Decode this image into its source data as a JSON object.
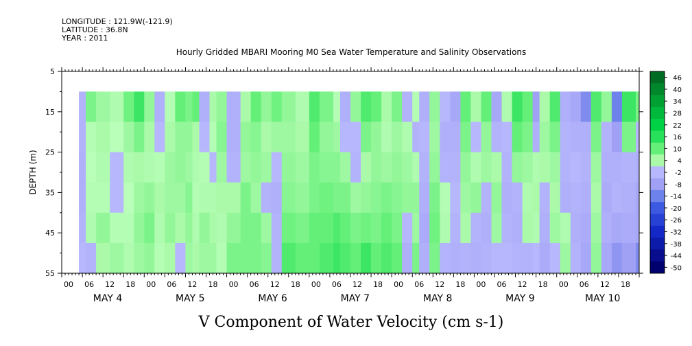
{
  "header": {
    "longitude": "LONGITUDE : 121.9W(-121.9)",
    "latitude": "LATITUDE : 36.8N",
    "year": "YEAR : 2011"
  },
  "chart_data": {
    "type": "heatmap",
    "title": "Hourly Gridded MBARI Mooring M0 Sea Water Temperature and Salinity Observations",
    "xlabel": "V Component of Water Velocity (cm s-1)",
    "ylabel": "DEPTH (m)",
    "y_axis": {
      "range": [
        5,
        55
      ],
      "ticks": [
        "5",
        "15",
        "25",
        "35",
        "45",
        "55"
      ],
      "inverted": true
    },
    "x_hour_ticks": [
      "00",
      "06",
      "12",
      "18",
      "00",
      "06",
      "12",
      "18",
      "00",
      "06",
      "12",
      "18",
      "00",
      "06",
      "12",
      "18",
      "00",
      "06",
      "12",
      "18",
      "00",
      "06",
      "12",
      "18",
      "00",
      "06",
      "12",
      "18"
    ],
    "x_day_labels": [
      "MAY  4",
      "MAY  5",
      "MAY  6",
      "MAY  7",
      "MAY  8",
      "MAY  9",
      "MAY 10"
    ],
    "data_extent": {
      "time_start": "MAY 4 05h",
      "time_end": "MAY 10 23h",
      "depth_top": 10,
      "depth_bottom": 55
    },
    "colorbar": {
      "labels": [
        "46",
        "40",
        "34",
        "28",
        "22",
        "16",
        "10",
        "4",
        "-2",
        "-8",
        "-14",
        "-20",
        "-26",
        "-32",
        "-38",
        "-44",
        "-50"
      ],
      "min": -50,
      "max": 50
    },
    "colors": {
      "near_zero_negative": "#b3b3ff",
      "near_zero_positive": "#b3ffb3",
      "strong_positive": "#00e64d",
      "strong_negative": "#3355dd"
    },
    "column_pattern": [
      {
        "t": 5,
        "v": [
          -3,
          -3,
          -4,
          -4,
          -3,
          -2
        ]
      },
      {
        "t": 7,
        "v": [
          8,
          2,
          1,
          2,
          3,
          -3
        ]
      },
      {
        "t": 10,
        "v": [
          5,
          4,
          3,
          2,
          6,
          4
        ]
      },
      {
        "t": 14,
        "v": [
          3,
          1,
          -2,
          -2,
          2,
          5
        ]
      },
      {
        "t": 18,
        "v": [
          9,
          5,
          3,
          1,
          2,
          3
        ]
      },
      {
        "t": 21,
        "v": [
          14,
          8,
          4,
          5,
          6,
          5
        ]
      },
      {
        "t": 24,
        "v": [
          6,
          4,
          3,
          6,
          8,
          6
        ]
      },
      {
        "t": 27,
        "v": [
          -4,
          -2,
          2,
          4,
          3,
          2
        ]
      },
      {
        "t": 30,
        "v": [
          2,
          4,
          5,
          5,
          6,
          4
        ]
      },
      {
        "t": 33,
        "v": [
          10,
          6,
          6,
          5,
          4,
          -2
        ]
      },
      {
        "t": 36,
        "v": [
          8,
          6,
          5,
          7,
          6,
          5
        ]
      },
      {
        "t": 38,
        "v": [
          10,
          4,
          3,
          2,
          3,
          4
        ]
      },
      {
        "t": 40,
        "v": [
          -4,
          -2,
          2,
          3,
          6,
          5
        ]
      },
      {
        "t": 43,
        "v": [
          4,
          2,
          -2,
          3,
          4,
          5
        ]
      },
      {
        "t": 45,
        "v": [
          6,
          7,
          5,
          4,
          3,
          2
        ]
      },
      {
        "t": 48,
        "v": [
          -4,
          -4,
          -3,
          4,
          6,
          8
        ]
      },
      {
        "t": 52,
        "v": [
          4,
          6,
          5,
          8,
          8,
          8
        ]
      },
      {
        "t": 55,
        "v": [
          10,
          7,
          6,
          5,
          8,
          8
        ]
      },
      {
        "t": 58,
        "v": [
          6,
          4,
          5,
          -3,
          5,
          7
        ]
      },
      {
        "t": 61,
        "v": [
          9,
          5,
          -2,
          -4,
          -3,
          -3
        ]
      },
      {
        "t": 64,
        "v": [
          6,
          5,
          6,
          7,
          9,
          12
        ]
      },
      {
        "t": 68,
        "v": [
          3,
          4,
          5,
          6,
          8,
          10
        ]
      },
      {
        "t": 72,
        "v": [
          12,
          10,
          8,
          8,
          10,
          10
        ]
      },
      {
        "t": 75,
        "v": [
          8,
          6,
          7,
          9,
          10,
          12
        ]
      },
      {
        "t": 79,
        "v": [
          2,
          5,
          7,
          8,
          12,
          14
        ]
      },
      {
        "t": 81,
        "v": [
          -4,
          -2,
          5,
          8,
          10,
          12
        ]
      },
      {
        "t": 84,
        "v": [
          6,
          -2,
          -3,
          5,
          8,
          10
        ]
      },
      {
        "t": 87,
        "v": [
          12,
          8,
          4,
          6,
          9,
          14
        ]
      },
      {
        "t": 90,
        "v": [
          10,
          6,
          6,
          7,
          8,
          10
        ]
      },
      {
        "t": 93,
        "v": [
          4,
          3,
          5,
          8,
          10,
          12
        ]
      },
      {
        "t": 96,
        "v": [
          8,
          5,
          6,
          7,
          8,
          10
        ]
      },
      {
        "t": 99,
        "v": [
          -3,
          3,
          5,
          6,
          -2,
          -4
        ]
      },
      {
        "t": 102,
        "v": [
          2,
          -3,
          3,
          6,
          5,
          8
        ]
      },
      {
        "t": 104,
        "v": [
          -4,
          -2,
          -3,
          -4,
          -5,
          -4
        ]
      },
      {
        "t": 107,
        "v": [
          6,
          5,
          6,
          8,
          9,
          8
        ]
      },
      {
        "t": 110,
        "v": [
          -2,
          -4,
          -3,
          2,
          3,
          -3
        ]
      },
      {
        "t": 113,
        "v": [
          -6,
          -4,
          -3,
          -2,
          -3,
          -4
        ]
      },
      {
        "t": 116,
        "v": [
          10,
          8,
          6,
          5,
          4,
          -3
        ]
      },
      {
        "t": 119,
        "v": [
          4,
          -2,
          3,
          6,
          -3,
          -4
        ]
      },
      {
        "t": 122,
        "v": [
          10,
          6,
          5,
          -3,
          -4,
          -3
        ]
      },
      {
        "t": 125,
        "v": [
          -6,
          -3,
          4,
          6,
          5,
          -2
        ]
      },
      {
        "t": 128,
        "v": [
          3,
          -2,
          -3,
          -4,
          -3,
          -2
        ]
      },
      {
        "t": 131,
        "v": [
          14,
          10,
          6,
          -3,
          -4,
          -3
        ]
      },
      {
        "t": 134,
        "v": [
          10,
          8,
          5,
          3,
          4,
          -3
        ]
      },
      {
        "t": 137,
        "v": [
          -8,
          -4,
          3,
          4,
          3,
          -2
        ]
      },
      {
        "t": 139,
        "v": [
          4,
          5,
          4,
          -3,
          -4,
          -5
        ]
      },
      {
        "t": 142,
        "v": [
          12,
          8,
          5,
          4,
          5,
          -2
        ]
      },
      {
        "t": 145,
        "v": [
          -4,
          -3,
          -3,
          -4,
          3,
          5
        ]
      },
      {
        "t": 148,
        "v": [
          -6,
          -4,
          -2,
          -3,
          -4,
          -3
        ]
      },
      {
        "t": 151,
        "v": [
          -12,
          -4,
          -3,
          -4,
          -5,
          -6
        ]
      },
      {
        "t": 154,
        "v": [
          12,
          8,
          5,
          4,
          5,
          6
        ]
      },
      {
        "t": 157,
        "v": [
          6,
          -3,
          -4,
          -5,
          -4,
          -6
        ]
      },
      {
        "t": 160,
        "v": [
          -14,
          -8,
          -4,
          -3,
          -6,
          -10
        ]
      },
      {
        "t": 163,
        "v": [
          14,
          8,
          -3,
          -4,
          -5,
          -8
        ]
      },
      {
        "t": 167,
        "v": [
          8,
          -2,
          -4,
          -6,
          -6,
          -12
        ]
      }
    ]
  }
}
